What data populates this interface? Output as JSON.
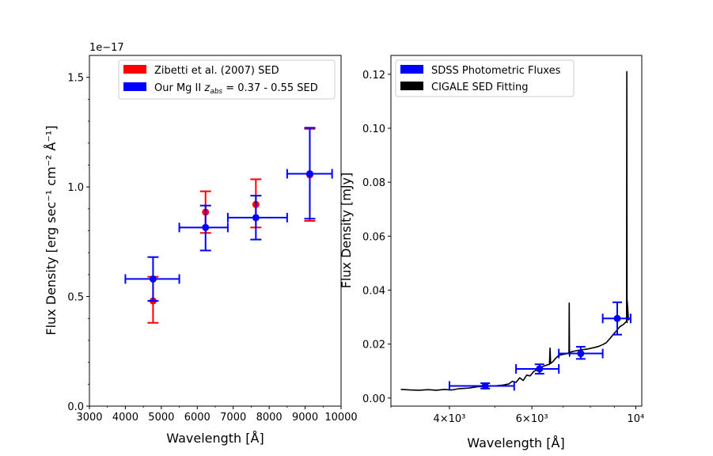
{
  "chart_data": [
    {
      "type": "scatter",
      "id": "left",
      "offset_label": "1e−17",
      "xlabel": "Wavelength [Å]",
      "ylabel": "Flux Density [erg sec⁻¹ cm⁻² Å⁻¹]",
      "xlim": [
        3000,
        10000
      ],
      "ylim": [
        0,
        1.6
      ],
      "xticks": [
        3000,
        4000,
        5000,
        6000,
        7000,
        8000,
        9000,
        10000
      ],
      "xtick_labels": [
        "3000",
        "4000",
        "5000",
        "6000",
        "7000",
        "8000",
        "9000",
        "10000"
      ],
      "yticks": [
        0.0,
        0.5,
        1.0,
        1.5
      ],
      "ytick_labels": [
        "0.0",
        "0.5",
        "1.0",
        "1.5"
      ],
      "legend_position": "top-right",
      "series": [
        {
          "name": "Zibetti et al. (2007) SED",
          "color": "#ff0000",
          "points": [
            {
              "x": 4770,
              "y": 0.48,
              "ylo": 0.38,
              "yhi": 0.59
            },
            {
              "x": 6230,
              "y": 0.885,
              "ylo": 0.79,
              "yhi": 0.98
            },
            {
              "x": 7630,
              "y": 0.92,
              "ylo": 0.815,
              "yhi": 1.035
            },
            {
              "x": 9130,
              "y": 1.055,
              "ylo": 0.845,
              "yhi": 1.265
            }
          ]
        },
        {
          "name": "Our Mg II z_abs = 0.37 - 0.55 SED",
          "color": "#0000ff",
          "points": [
            {
              "x": 4770,
              "y": 0.58,
              "ylo": 0.48,
              "yhi": 0.68,
              "xlo": 4000,
              "xhi": 5500
            },
            {
              "x": 6230,
              "y": 0.815,
              "ylo": 0.71,
              "yhi": 0.915,
              "xlo": 5500,
              "xhi": 6850
            },
            {
              "x": 7630,
              "y": 0.86,
              "ylo": 0.76,
              "yhi": 0.96,
              "xlo": 6850,
              "xhi": 8500
            },
            {
              "x": 9130,
              "y": 1.06,
              "ylo": 0.855,
              "yhi": 1.27,
              "xlo": 8500,
              "xhi": 9750
            }
          ]
        }
      ],
      "legend": [
        {
          "label": "Zibetti et al. (2007) SED",
          "color": "#ff0000"
        },
        {
          "label_prefix": "Our Mg II ",
          "label_z": "z",
          "label_sub": "abs",
          "label_suffix": " = 0.37 - 0.55 SED",
          "color": "#0000ff"
        }
      ]
    },
    {
      "type": "line",
      "id": "right",
      "xscale": "log",
      "xlabel": "Wavelength [Å]",
      "ylabel": "Flux Density [mJy]",
      "xlim": [
        3000,
        10300
      ],
      "ylim": [
        -0.003,
        0.127
      ],
      "xticks": [
        4000,
        6000,
        10000
      ],
      "xtick_labels": [
        "4×10³",
        "6×10³",
        "10⁴"
      ],
      "yticks": [
        0.0,
        0.02,
        0.04,
        0.06,
        0.08,
        0.1,
        0.12
      ],
      "ytick_labels": [
        "0.00",
        "0.02",
        "0.04",
        "0.06",
        "0.08",
        "0.10",
        "0.12"
      ],
      "legend_position": "top-left",
      "photometry": {
        "name": "SDSS Photometric Fluxes",
        "color": "#0000ff",
        "points": [
          {
            "x": 4770,
            "y": 0.0045,
            "ylo": 0.0035,
            "yhi": 0.0055,
            "xlo": 4000,
            "xhi": 5500
          },
          {
            "x": 6230,
            "y": 0.0108,
            "ylo": 0.009,
            "yhi": 0.0125,
            "xlo": 5550,
            "xhi": 6850
          },
          {
            "x": 7630,
            "y": 0.0165,
            "ylo": 0.0145,
            "yhi": 0.019,
            "xlo": 6850,
            "xhi": 8500
          },
          {
            "x": 9130,
            "y": 0.0295,
            "ylo": 0.0235,
            "yhi": 0.0355,
            "xlo": 8500,
            "xhi": 9750
          }
        ]
      },
      "sed": {
        "name": "CIGALE SED Fitting",
        "color": "#000000",
        "x": [
          3150,
          3300,
          3450,
          3600,
          3750,
          3900,
          4050,
          4200,
          4400,
          4600,
          4800,
          5000,
          5200,
          5350,
          5450,
          5550,
          5650,
          5750,
          5850,
          5950,
          6050,
          6150,
          6250,
          6350,
          6450,
          6540,
          6560,
          6580,
          6650,
          6750,
          6850,
          7000,
          7150,
          7200,
          7210,
          7220,
          7230,
          7300,
          7450,
          7600,
          7750,
          7900,
          8050,
          8200,
          8350,
          8500,
          8650,
          8800,
          8950,
          9100,
          9250,
          9400,
          9500,
          9560,
          9570,
          9580,
          9590,
          9650,
          9700
        ],
        "y": [
          0.0032,
          0.003,
          0.0029,
          0.0031,
          0.0029,
          0.0032,
          0.003,
          0.0035,
          0.0037,
          0.0042,
          0.0043,
          0.0045,
          0.0048,
          0.0052,
          0.0062,
          0.0058,
          0.0075,
          0.0065,
          0.0085,
          0.0082,
          0.0098,
          0.0105,
          0.011,
          0.0118,
          0.0122,
          0.0125,
          0.0185,
          0.0128,
          0.0135,
          0.0148,
          0.0158,
          0.0162,
          0.0165,
          0.017,
          0.0352,
          0.0155,
          0.0168,
          0.0172,
          0.0175,
          0.0178,
          0.018,
          0.0182,
          0.0185,
          0.0188,
          0.0192,
          0.0198,
          0.0205,
          0.022,
          0.0235,
          0.025,
          0.0265,
          0.0272,
          0.028,
          0.0285,
          0.121,
          0.028,
          0.036,
          0.029,
          0.0295
        ]
      },
      "legend": [
        {
          "label": "SDSS Photometric Fluxes",
          "color": "#0000ff"
        },
        {
          "label": "CIGALE SED Fitting",
          "color": "#000000"
        }
      ]
    }
  ]
}
